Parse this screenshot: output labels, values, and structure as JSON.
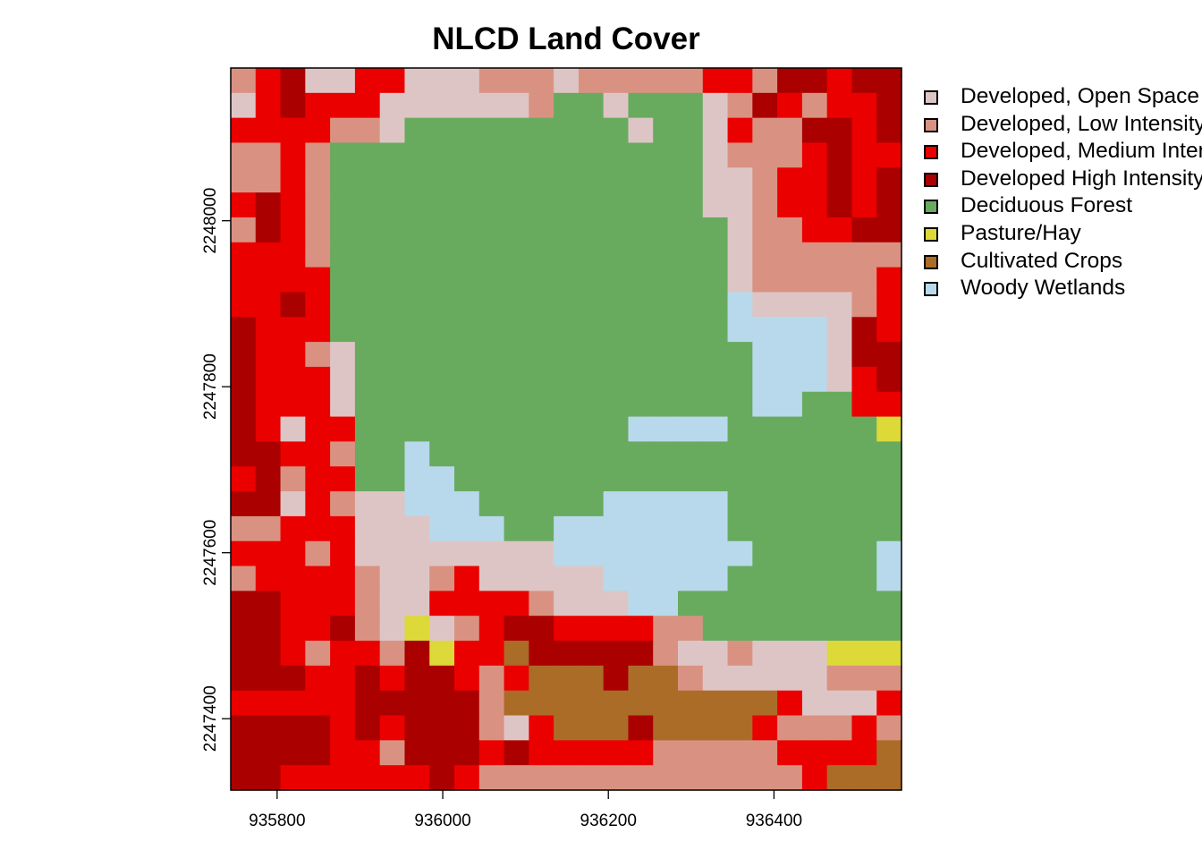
{
  "chart_data": {
    "type": "heatmap",
    "title": "NLCD Land Cover",
    "xlabel": "",
    "ylabel": "",
    "extent": {
      "xmin": 935744,
      "xmax": 936554,
      "ymin": 2247314,
      "ymax": 2248184
    },
    "cell_size": 30,
    "x_ticks": [
      935800,
      936000,
      936200,
      936400
    ],
    "y_ticks": [
      2247400,
      2247600,
      2247800,
      2248000
    ],
    "x_tick_labels": [
      "935800",
      "936000",
      "936200",
      "936400"
    ],
    "y_tick_labels": [
      "2247400",
      "2247600",
      "2247800",
      "2248000"
    ],
    "legend_position": "right",
    "classes": [
      {
        "code": "O",
        "name": "Developed, Open Space",
        "color": "#DEC5C5"
      },
      {
        "code": "L",
        "name": "Developed, Low Intensity",
        "color": "#D99282"
      },
      {
        "code": "M",
        "name": "Developed, Medium Intensity",
        "color": "#EB0000"
      },
      {
        "code": "H",
        "name": "Developed High Intensity",
        "color": "#AB0000"
      },
      {
        "code": "F",
        "name": "Deciduous Forest",
        "color": "#68AB5F"
      },
      {
        "code": "P",
        "name": "Pasture/Hay",
        "color": "#DCD939"
      },
      {
        "code": "C",
        "name": "Cultivated Crops",
        "color": "#AB6C28"
      },
      {
        "code": "W",
        "name": "Woody Wetlands",
        "color": "#B8D9EB"
      }
    ],
    "grid_rows_top_to_bottom": [
      "LMHOOMMOOOLLLOLLLLLMMLHHMHH",
      "OMHMMMOOOOOOLFFOFFFOLHMLMMH",
      "MMMMLLOFFFFFFFFFOFFOMLLHHMH",
      "LLMLFFFFFFFFFFFFFFFOLLLMHMM",
      "LLMLFFFFFFFFFFFFFFFOOLMMHMH",
      "MHMLFFFFFFFFFFFFFFFOOLMMHMH",
      "LHMLFFFFFFFFFFFFFFFFOLLMMHH",
      "MMMLFFFFFFFFFFFFFFFFOLLLLLL",
      "MMMMFFFFFFFFFFFFFFFFOLLLLLM",
      "MMHMFFFFFFFFFFFFFFFFWOOOOLM",
      "HMMMFFFFFFFFFFFFFFFFWWWWOHM",
      "HMMLOFFFFFFFFFFFFFFFFWWWOHH",
      "HMMMOFFFFFFFFFFFFFFFFWWWOMH",
      "HMMMOFFFFFFFFFFFFFFFFWWFFMM",
      "HMOMMFFFFFFFFFFFWWWWFFFFFFP",
      "HHMMLFFWFFFFFFFFFFFFFFFFFFF",
      "MHLMMFFWWFFFFFFFFFFFFFFFFFF",
      "HHOMLOOWWWFFFFFWWWWWFFFFFFF",
      "LLMMMOOOWWWFFWWWWWWWFFFFFFF",
      "MMMLMOOOOOOOOWWWWWWWWFFFFFW",
      "LMMMMLOOLMOOOOOWWWWWFFFFFFW",
      "HHMMMLOOMMMMLOOOWWFFFFFFFFF",
      "HHMMHLOPOLMHHMMMMLLFFFFFFFF",
      "HHMLMMLHPMMCHHHHHLOOLOOOPPP",
      "HHHMMHMHHMLMCCCHCCLOOOOOLLL",
      "MMMMMHHHHHLCCCCCCCCCCCMOOOM",
      "HHHHMHMHHHLOMCCCHCCCCMLLLML",
      "HHHHMMLHHHMHMMMMMLLLLLMMMMC",
      "HHMMMMMMHMLLLLLLLLLLLLLMCCC"
    ]
  }
}
